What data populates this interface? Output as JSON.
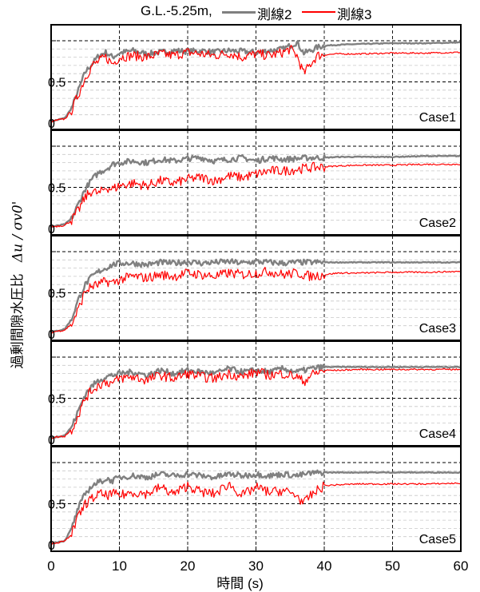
{
  "legend": {
    "title": "G.L.-5.25m,",
    "items": [
      {
        "name": "測線2",
        "color": "#808080"
      },
      {
        "name": "測線3",
        "color": "#ff0000"
      }
    ]
  },
  "ylabel": {
    "text": "過剰間隙水圧比",
    "symbol": "Δu / σv0'"
  },
  "xlabel": "時間 (s)",
  "chart_data": {
    "type": "line",
    "xlim": [
      0,
      60
    ],
    "ylim": [
      0,
      1
    ],
    "x_ticks": [
      0,
      10,
      20,
      30,
      40,
      50,
      60
    ],
    "x_tick_labels": [
      "0",
      "10",
      "20",
      "30",
      "40",
      "50",
      "60"
    ],
    "y_tick_labels": [
      "0",
      "0.5"
    ],
    "grid": true,
    "legend_position": "top",
    "series_names": [
      "測線2",
      "測線3"
    ],
    "series_colors": [
      "#808080",
      "#ff0000"
    ],
    "panels": [
      {
        "label": "Case1",
        "series": [
          {
            "name": "測線2",
            "x": [
              0,
              2,
              3,
              4,
              5,
              6,
              7,
              8,
              9,
              10,
              12,
              14,
              16,
              18,
              20,
              22,
              24,
              26,
              28,
              30,
              32,
              34,
              36,
              37,
              38,
              39,
              40,
              42,
              45,
              50,
              55,
              60
            ],
            "y": [
              0.02,
              0.06,
              0.18,
              0.4,
              0.62,
              0.72,
              0.82,
              0.86,
              0.8,
              0.85,
              0.88,
              0.84,
              0.86,
              0.88,
              0.87,
              0.88,
              0.86,
              0.88,
              0.87,
              0.86,
              0.88,
              0.9,
              0.98,
              0.85,
              0.88,
              0.92,
              0.94,
              0.95,
              0.96,
              0.97,
              0.97,
              0.98
            ]
          },
          {
            "name": "測線3",
            "x": [
              0,
              2,
              3,
              4,
              5,
              6,
              7,
              8,
              9,
              10,
              12,
              14,
              16,
              18,
              20,
              22,
              24,
              26,
              28,
              30,
              32,
              34,
              35,
              36,
              37,
              38,
              39,
              40,
              42,
              45,
              50,
              55,
              60
            ],
            "y": [
              0.02,
              0.05,
              0.15,
              0.35,
              0.55,
              0.7,
              0.75,
              0.8,
              0.72,
              0.8,
              0.82,
              0.8,
              0.84,
              0.82,
              0.86,
              0.84,
              0.82,
              0.85,
              0.8,
              0.84,
              0.82,
              0.86,
              0.9,
              0.82,
              0.6,
              0.72,
              0.82,
              0.83,
              0.84,
              0.84,
              0.85,
              0.85,
              0.86
            ]
          }
        ]
      },
      {
        "label": "Case2",
        "series": [
          {
            "name": "測線2",
            "x": [
              0,
              2,
              3,
              4,
              5,
              6,
              7,
              8,
              9,
              10,
              12,
              14,
              16,
              18,
              20,
              22,
              24,
              26,
              28,
              30,
              32,
              34,
              36,
              38,
              40,
              42,
              45,
              50,
              55,
              60
            ],
            "y": [
              0.02,
              0.05,
              0.12,
              0.3,
              0.48,
              0.6,
              0.68,
              0.72,
              0.78,
              0.8,
              0.82,
              0.8,
              0.84,
              0.82,
              0.85,
              0.86,
              0.82,
              0.84,
              0.86,
              0.82,
              0.86,
              0.84,
              0.85,
              0.86,
              0.86,
              0.87,
              0.87,
              0.87,
              0.88,
              0.88
            ]
          },
          {
            "name": "測線3",
            "x": [
              0,
              2,
              3,
              4,
              5,
              6,
              7,
              8,
              9,
              10,
              12,
              14,
              16,
              18,
              20,
              22,
              24,
              26,
              28,
              30,
              32,
              34,
              36,
              38,
              40,
              42,
              45,
              50,
              55,
              60
            ],
            "y": [
              0.02,
              0.04,
              0.1,
              0.22,
              0.38,
              0.46,
              0.42,
              0.5,
              0.48,
              0.52,
              0.55,
              0.52,
              0.58,
              0.55,
              0.6,
              0.62,
              0.58,
              0.64,
              0.62,
              0.66,
              0.7,
              0.7,
              0.72,
              0.74,
              0.75,
              0.76,
              0.77,
              0.77,
              0.78,
              0.78
            ]
          }
        ]
      },
      {
        "label": "Case3",
        "series": [
          {
            "name": "測線2",
            "x": [
              0,
              2,
              3,
              4,
              5,
              6,
              7,
              8,
              9,
              10,
              12,
              14,
              16,
              18,
              20,
              22,
              24,
              26,
              28,
              30,
              32,
              34,
              36,
              38,
              40,
              42,
              45,
              50,
              55,
              60
            ],
            "y": [
              0.02,
              0.06,
              0.18,
              0.42,
              0.6,
              0.7,
              0.76,
              0.8,
              0.84,
              0.86,
              0.86,
              0.84,
              0.87,
              0.86,
              0.88,
              0.86,
              0.87,
              0.88,
              0.86,
              0.88,
              0.87,
              0.86,
              0.87,
              0.87,
              0.87,
              0.87,
              0.87,
              0.87,
              0.87,
              0.87
            ]
          },
          {
            "name": "測線3",
            "x": [
              0,
              2,
              3,
              4,
              5,
              6,
              7,
              8,
              9,
              10,
              12,
              14,
              16,
              18,
              20,
              22,
              24,
              26,
              28,
              30,
              32,
              34,
              36,
              38,
              40,
              42,
              45,
              50,
              55,
              60
            ],
            "y": [
              0.02,
              0.05,
              0.12,
              0.3,
              0.52,
              0.58,
              0.6,
              0.64,
              0.62,
              0.66,
              0.7,
              0.68,
              0.72,
              0.7,
              0.74,
              0.72,
              0.7,
              0.74,
              0.72,
              0.74,
              0.76,
              0.72,
              0.74,
              0.7,
              0.72,
              0.74,
              0.74,
              0.75,
              0.75,
              0.76
            ]
          }
        ]
      },
      {
        "label": "Case4",
        "series": [
          {
            "name": "測線2",
            "x": [
              0,
              2,
              3,
              4,
              5,
              6,
              7,
              8,
              9,
              10,
              12,
              14,
              16,
              18,
              20,
              22,
              24,
              26,
              28,
              30,
              32,
              34,
              36,
              38,
              40,
              42,
              45,
              50,
              55,
              60
            ],
            "y": [
              0.02,
              0.05,
              0.15,
              0.35,
              0.55,
              0.65,
              0.72,
              0.76,
              0.78,
              0.8,
              0.82,
              0.78,
              0.84,
              0.8,
              0.84,
              0.82,
              0.8,
              0.86,
              0.82,
              0.84,
              0.82,
              0.86,
              0.82,
              0.86,
              0.88,
              0.88,
              0.88,
              0.88,
              0.88,
              0.88
            ]
          },
          {
            "name": "測線3",
            "x": [
              0,
              2,
              3,
              4,
              5,
              6,
              7,
              8,
              9,
              10,
              12,
              14,
              16,
              18,
              20,
              22,
              24,
              26,
              28,
              30,
              32,
              34,
              36,
              37,
              38,
              40,
              42,
              45,
              50,
              55,
              60
            ],
            "y": [
              0.02,
              0.04,
              0.12,
              0.3,
              0.5,
              0.6,
              0.66,
              0.7,
              0.68,
              0.74,
              0.76,
              0.72,
              0.78,
              0.74,
              0.8,
              0.76,
              0.74,
              0.8,
              0.76,
              0.82,
              0.78,
              0.8,
              0.76,
              0.7,
              0.78,
              0.84,
              0.84,
              0.85,
              0.85,
              0.85,
              0.85
            ]
          }
        ]
      },
      {
        "label": "Case5",
        "series": [
          {
            "name": "測線2",
            "x": [
              0,
              2,
              3,
              4,
              5,
              6,
              7,
              8,
              9,
              10,
              12,
              14,
              16,
              18,
              20,
              22,
              24,
              26,
              28,
              30,
              32,
              34,
              36,
              38,
              40,
              42,
              45,
              50,
              55,
              60
            ],
            "y": [
              0.02,
              0.05,
              0.2,
              0.45,
              0.62,
              0.72,
              0.76,
              0.8,
              0.78,
              0.82,
              0.84,
              0.82,
              0.86,
              0.84,
              0.86,
              0.84,
              0.82,
              0.86,
              0.84,
              0.86,
              0.84,
              0.86,
              0.84,
              0.87,
              0.88,
              0.88,
              0.88,
              0.88,
              0.88,
              0.88
            ]
          },
          {
            "name": "測線3",
            "x": [
              0,
              2,
              3,
              4,
              5,
              6,
              7,
              8,
              9,
              10,
              12,
              14,
              16,
              18,
              20,
              22,
              24,
              26,
              28,
              30,
              32,
              34,
              36,
              37,
              38,
              40,
              42,
              45,
              50,
              55,
              60
            ],
            "y": [
              0.02,
              0.04,
              0.14,
              0.34,
              0.5,
              0.56,
              0.62,
              0.6,
              0.62,
              0.6,
              0.64,
              0.62,
              0.7,
              0.62,
              0.72,
              0.64,
              0.62,
              0.74,
              0.6,
              0.7,
              0.64,
              0.66,
              0.6,
              0.5,
              0.6,
              0.72,
              0.73,
              0.74,
              0.74,
              0.74,
              0.75
            ]
          }
        ]
      }
    ]
  }
}
